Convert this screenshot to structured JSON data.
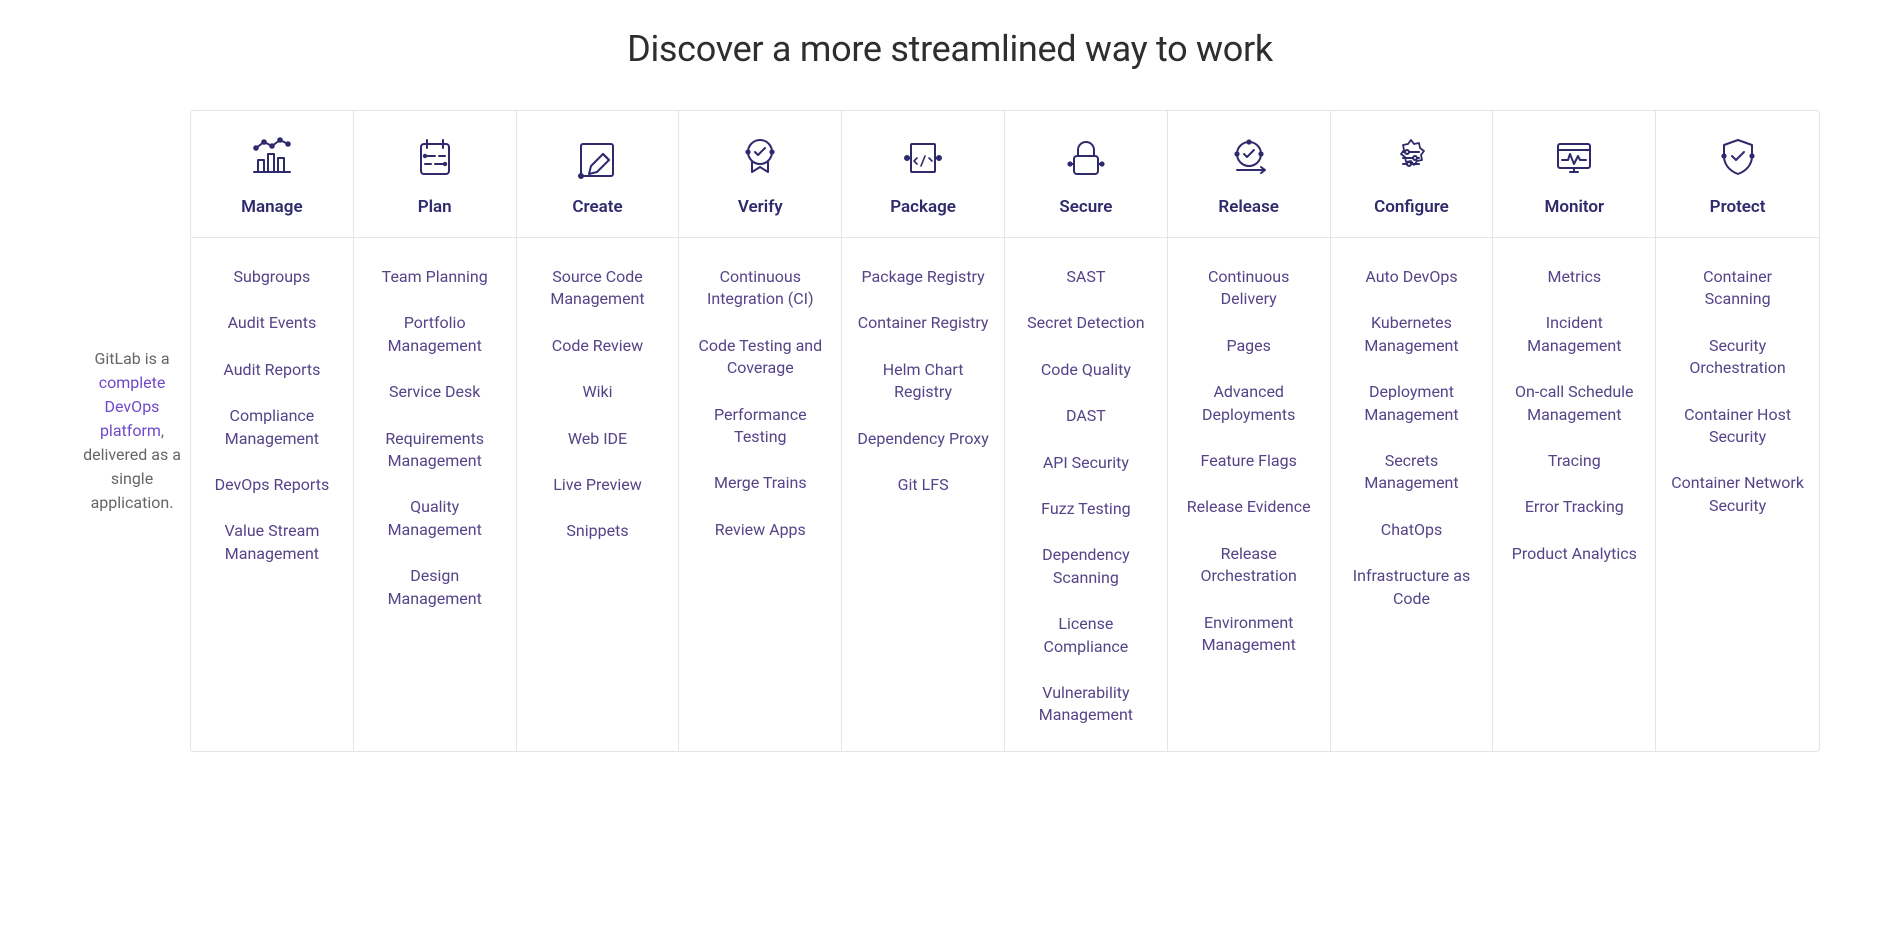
{
  "colors": {
    "icon_stroke": "#2f2a6b",
    "heading_text": "#2f2a6b",
    "link_text": "#554488",
    "body_text": "#2e2e2e",
    "muted_text": "#666666",
    "border": "#e5e5e5",
    "background": "#ffffff"
  },
  "title": "Discover a more streamlined way to work",
  "sidebar": {
    "prefix": "GitLab is a ",
    "link_text": "complete DevOps platform",
    "suffix": ", delivered as a single application."
  },
  "icons": {
    "manage": "<svg viewBox='0 0 48 48' width='48' height='48'><polyline points='8,14 16,8 24,12 32,6 40,10'/><circle cx='8' cy='14' r='1.8' fill='#2f2a6b'/><circle cx='16' cy='8' r='1.8' fill='#2f2a6b'/><circle cx='24' cy='12' r='1.8' fill='#2f2a6b'/><circle cx='32' cy='6' r='1.8' fill='#2f2a6b'/><circle cx='40' cy='10' r='1.8' fill='#2f2a6b'/><line x1='6' y1='38' x2='42' y2='38'/><rect x='10' y='26' width='6' height='12'/><rect x='20' y='20' width='6' height='18'/><rect x='30' y='24' width='6' height='14'/></svg>",
    "plan": "<svg viewBox='0 0 48 48' width='48' height='48'><rect x='10' y='10' width='28' height='30' rx='3'/><line x1='16' y1='6' x2='16' y2='14'/><line x1='32' y1='6' x2='32' y2='14'/><path d='M14 22 h10 M28 22 h6 M14 30 h6 M24 30 h10'/><circle cx='14' cy='22' r='1.2' fill='#2f2a6b'/><circle cx='34' cy='30' r='1.2' fill='#2f2a6b'/></svg>",
    "create": "<svg viewBox='0 0 48 48' width='48' height='48'><rect x='8' y='10' width='32' height='32' rx='2'/><circle cx='8' cy='42' r='2' fill='#2f2a6b'/><path d='M18 32 l12 -12 l6 6 l-12 12 l-8 2 z'/><path d='M30 20 l6 6'/></svg>",
    "verify": "<svg viewBox='0 0 48 48' width='48' height='48'><circle cx='24' cy='18' r='12'/><path d='M19 18 l3 3 l7 -7'/><path d='M16 28 v10 l8 -5 l8 5 v-10'/><circle cx='12' cy='18' r='1.6' fill='#2f2a6b'/><circle cx='36' cy='18' r='1.6' fill='#2f2a6b'/></svg>",
    "package": "<svg viewBox='0 0 48 48' width='48' height='48'><rect x='12' y='10' width='24' height='28' rx='1'/><path d='M18 24 l-3 3 l3 3 M30 24 l3 3 l-3 -3 M26 22 l-4 10' stroke-width='1.6'/><circle cx='8' cy='24' r='2' fill='#2f2a6b'/><circle cx='40' cy='24' r='2' fill='#2f2a6b'/><line x1='10' y1='24' x2='12' y2='24'/><line x1='36' y1='24' x2='38' y2='24'/></svg>",
    "secure": "<svg viewBox='0 0 48 48' width='48' height='48'><rect x='12' y='22' width='24' height='18' rx='3'/><path d='M16 22 v-6 a8 8 0 0 1 16 0 v6'/><circle cx='8' cy='30' r='1.6' fill='#2f2a6b'/><circle cx='40' cy='30' r='1.6' fill='#2f2a6b'/><line x1='9.5' y1='30' x2='12' y2='30'/><line x1='36' y1='30' x2='38.5' y2='30'/></svg>",
    "release": "<svg viewBox='0 0 48 48' width='48' height='48'><circle cx='24' cy='20' r='12'/><path d='M19 20 l3 3 l7 -7'/><circle cx='24' cy='8' r='1.6' fill='#2f2a6b'/><circle cx='12' cy='20' r='1.6' fill='#2f2a6b'/><circle cx='36' cy='20' r='1.6' fill='#2f2a6b'/><path d='M12 36 h28 m0 0 l-4 -3 m4 3 l-4 3'/></svg>",
    "configure": "<svg viewBox='0 0 48 48' width='48' height='48'><path d='M24 6 l3 4 5 -1 1 5 4 3 -3 4 1 5 -5 1 -3 4 -3 -4 -5 1 -1 -5 -4 -3 3 -4 -1 -5 5 -1 z' stroke-width='1.8'/><line x1='16' y1='18' x2='32' y2='18'/><circle cx='20' cy='18' r='2' fill='#ffffff'/><line x1='16' y1='24' x2='32' y2='24'/><circle cx='28' cy='24' r='2' fill='#ffffff'/><line x1='16' y1='30' x2='32' y2='30'/><circle cx='22' cy='30' r='2' fill='#ffffff'/></svg>",
    "monitor": "<svg viewBox='0 0 48 48' width='48' height='48'><rect x='8' y='10' width='32' height='24' rx='2'/><line x1='8' y1='16' x2='40' y2='16'/><polyline points='12,26 18,26 20,20 24,30 28,22 30,26 36,26'/><line x1='20' y1='38' x2='28' y2='38'/><line x1='24' y1='34' x2='24' y2='38'/></svg>",
    "protect": "<svg viewBox='0 0 48 48' width='48' height='48'><path d='M24 6 l14 5 v11 c0 9 -6 15 -14 18 c-8 -3 -14 -9 -14 -18 v-11 z'/><path d='M18 22 l4 4 l8 -8'/><circle cx='10' cy='22' r='1.6' fill='#2f2a6b'/><circle cx='38' cy='22' r='1.6' fill='#2f2a6b'/></svg>"
  },
  "columns": [
    {
      "key": "manage",
      "label": "Manage",
      "icon": "manage",
      "items": [
        "Subgroups",
        "Audit Events",
        "Audit Reports",
        "Compliance Management",
        "DevOps Reports",
        "Value Stream Management"
      ]
    },
    {
      "key": "plan",
      "label": "Plan",
      "icon": "plan",
      "items": [
        "Team Planning",
        "Portfolio Management",
        "Service Desk",
        "Requirements Management",
        "Quality Management",
        "Design Management"
      ]
    },
    {
      "key": "create",
      "label": "Create",
      "icon": "create",
      "items": [
        "Source Code Management",
        "Code Review",
        "Wiki",
        "Web IDE",
        "Live Preview",
        "Snippets"
      ]
    },
    {
      "key": "verify",
      "label": "Verify",
      "icon": "verify",
      "items": [
        "Continuous Integration (CI)",
        "Code Testing and Coverage",
        "Performance Testing",
        "Merge Trains",
        "Review Apps"
      ]
    },
    {
      "key": "package",
      "label": "Package",
      "icon": "package",
      "items": [
        "Package Registry",
        "Container Registry",
        "Helm Chart Registry",
        "Dependency Proxy",
        "Git LFS"
      ]
    },
    {
      "key": "secure",
      "label": "Secure",
      "icon": "secure",
      "items": [
        "SAST",
        "Secret Detection",
        "Code Quality",
        "DAST",
        "API Security",
        "Fuzz Testing",
        "Dependency Scanning",
        "License Compliance",
        "Vulnerability Management"
      ]
    },
    {
      "key": "release",
      "label": "Release",
      "icon": "release",
      "items": [
        "Continuous Delivery",
        "Pages",
        "Advanced Deployments",
        "Feature Flags",
        "Release Evidence",
        "Release Orchestration",
        "Environment Management"
      ]
    },
    {
      "key": "configure",
      "label": "Configure",
      "icon": "configure",
      "items": [
        "Auto DevOps",
        "Kubernetes Management",
        "Deployment Management",
        "Secrets Management",
        "ChatOps",
        "Infrastructure as Code"
      ]
    },
    {
      "key": "monitor",
      "label": "Monitor",
      "icon": "monitor",
      "items": [
        "Metrics",
        "Incident Management",
        "On-call Schedule Management",
        "Tracing",
        "Error Tracking",
        "Product Analytics"
      ]
    },
    {
      "key": "protect",
      "label": "Protect",
      "icon": "protect",
      "items": [
        "Container Scanning",
        "Security Orchestration",
        "Container Host Security",
        "Container Network Security"
      ]
    }
  ]
}
